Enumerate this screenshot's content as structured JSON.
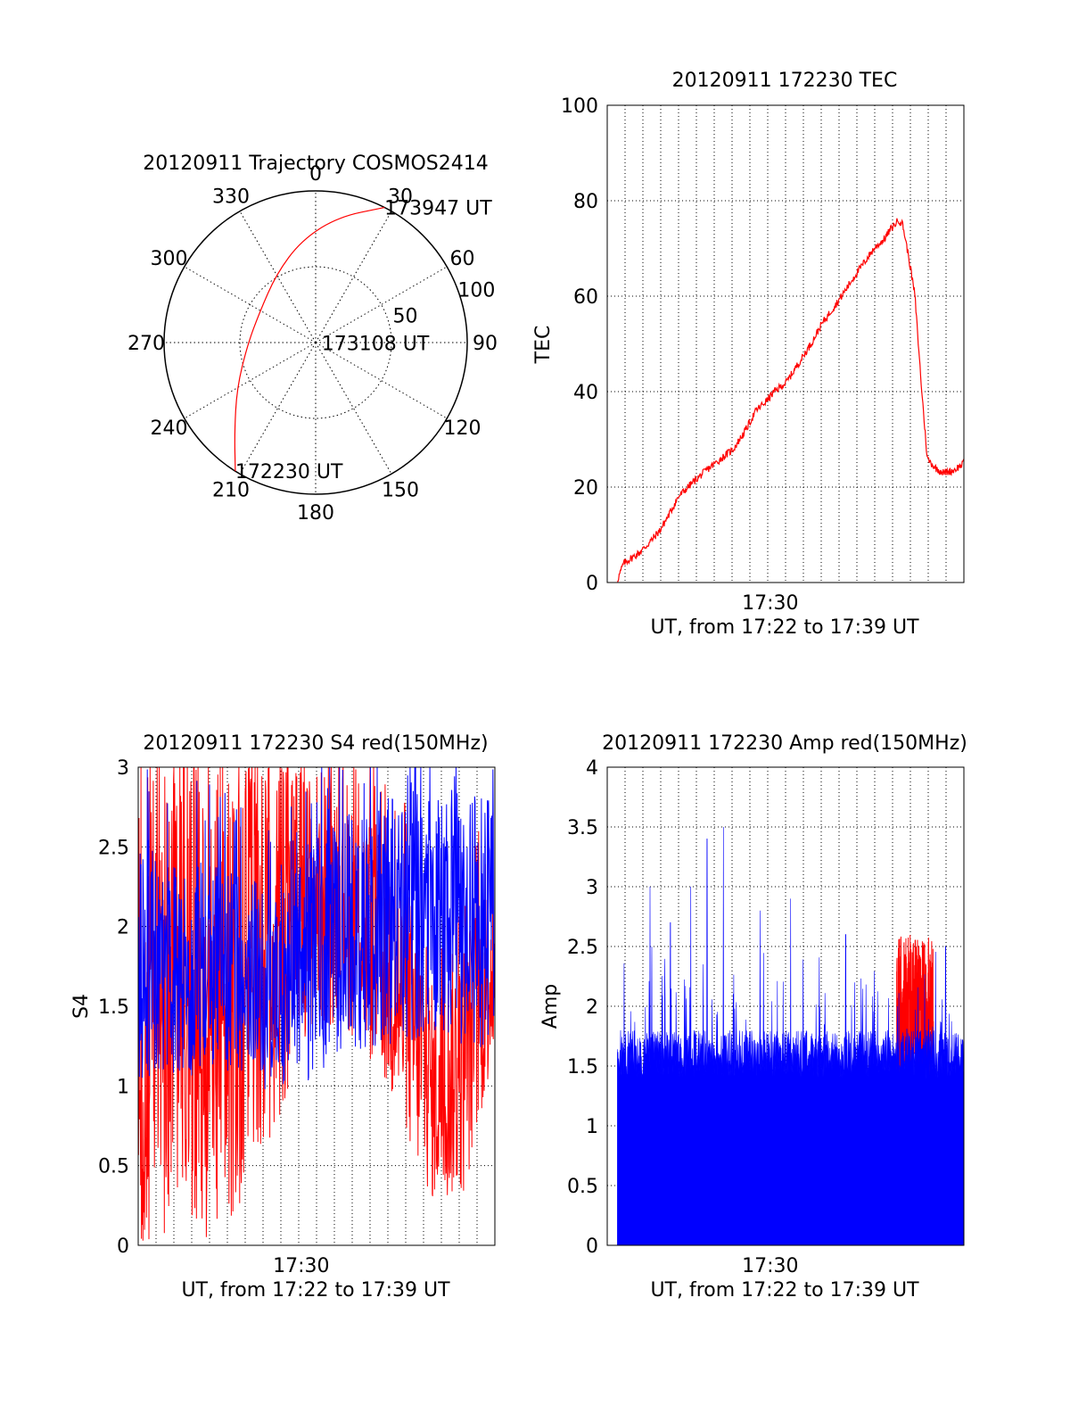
{
  "chart_data": [
    {
      "type": "polar",
      "title": "20120911 Trajectory COSMOS2414",
      "azimuth_labels": [
        "0",
        "30",
        "60",
        "90",
        "120",
        "150",
        "180",
        "210",
        "240",
        "270",
        "300",
        "330"
      ],
      "azimuth_values": [
        0,
        30,
        60,
        90,
        120,
        150,
        180,
        210,
        240,
        270,
        300,
        330
      ],
      "ring_labels": [
        "50",
        "100"
      ],
      "ring_values": [
        50,
        100
      ],
      "grid": true,
      "series": [
        {
          "color": "#ff0000",
          "points": [
            {
              "az": 212,
              "r": 100
            },
            {
              "az": 222,
              "r": 80
            },
            {
              "az": 240,
              "r": 60
            },
            {
              "az": 268,
              "r": 45
            },
            {
              "az": 298,
              "r": 42
            },
            {
              "az": 330,
              "r": 52
            },
            {
              "az": 352,
              "r": 68
            },
            {
              "az": 10,
              "r": 84
            },
            {
              "az": 27,
              "r": 100
            }
          ]
        }
      ],
      "annotations": [
        {
          "text": "172230 UT",
          "az": 212,
          "r": 100
        },
        {
          "text": "173108 UT",
          "az": 95,
          "r": 4
        },
        {
          "text": "173947 UT",
          "az": 27,
          "r": 100
        }
      ]
    },
    {
      "type": "line",
      "title": "20120911 172230 TEC",
      "ylabel": "TEC",
      "xlabel": "UT, from 17:22 to 17:39 UT",
      "xlim": [
        0,
        17.5
      ],
      "x_unit": "minutes since 17:22",
      "ylim": [
        0,
        100
      ],
      "yticks": [
        0,
        20,
        40,
        60,
        80,
        100
      ],
      "ytick_labels": [
        "0",
        "20",
        "40",
        "60",
        "80",
        "100"
      ],
      "xticks": [
        8
      ],
      "xtick_labels": [
        "17:30"
      ],
      "x_gridlines": 20,
      "grid": true,
      "series": [
        {
          "color": "#ff0000",
          "x": [
            0.5,
            0.8,
            1.5,
            2.0,
            2.6,
            3.0,
            3.5,
            4.2,
            5.0,
            5.6,
            6.2,
            6.8,
            7.3,
            7.8,
            8.2,
            8.8,
            9.4,
            10.0,
            10.5,
            11.0,
            11.5,
            12.1,
            12.6,
            13.1,
            13.6,
            13.9,
            14.1,
            14.3,
            14.5,
            14.8,
            15.1,
            15.4,
            15.7,
            16.1,
            16.5,
            17.0,
            17.5
          ],
          "y": [
            0.5,
            4,
            6,
            8,
            11,
            14,
            18,
            21,
            24,
            26,
            28,
            32,
            36,
            38,
            40,
            42,
            46,
            50,
            54,
            57,
            60,
            64,
            67,
            70,
            72,
            74,
            75,
            76,
            75,
            68,
            60,
            42,
            26,
            24,
            23,
            23.5,
            25
          ]
        }
      ]
    },
    {
      "type": "line",
      "title": "20120911 172230 S4 red(150MHz)",
      "ylabel": "S4",
      "xlabel": "UT, from 17:22 to 17:39 UT",
      "xlim": [
        0,
        17.5
      ],
      "x_unit": "minutes since 17:22",
      "ylim": [
        0,
        3
      ],
      "yticks": [
        0,
        0.5,
        1,
        1.5,
        2,
        2.5,
        3
      ],
      "ytick_labels": [
        "0",
        "0.5",
        "1",
        "1.5",
        "2",
        "2.5",
        "3"
      ],
      "xticks": [
        8
      ],
      "xtick_labels": [
        "17:30"
      ],
      "x_gridlines": 20,
      "grid": true,
      "series": [
        {
          "color": "#ff0000",
          "noise_model": "red S4: dense spikes 0–3 early; 1.5–3 band mid; drop to ~0.3–1.0 near 14–16 min",
          "envelope": [
            {
              "x": 0,
              "lo": 0,
              "hi": 3
            },
            {
              "x": 2,
              "lo": 0,
              "hi": 3
            },
            {
              "x": 4,
              "lo": 0,
              "hi": 3
            },
            {
              "x": 6.5,
              "lo": 0.5,
              "hi": 3
            },
            {
              "x": 8,
              "lo": 1.3,
              "hi": 3
            },
            {
              "x": 10,
              "lo": 1.4,
              "hi": 3
            },
            {
              "x": 12,
              "lo": 1.0,
              "hi": 2.6
            },
            {
              "x": 13.5,
              "lo": 0.5,
              "hi": 2.2
            },
            {
              "x": 14.5,
              "lo": 0.25,
              "hi": 1.6
            },
            {
              "x": 16,
              "lo": 0.3,
              "hi": 2.0
            },
            {
              "x": 17.5,
              "lo": 1.2,
              "hi": 2.4
            }
          ]
        },
        {
          "color": "#0000ff",
          "noise_model": "blue S4: mostly 1.0–2.6, occasional spikes",
          "envelope": [
            {
              "x": 0,
              "lo": 1.0,
              "hi": 2.5
            },
            {
              "x": 4,
              "lo": 1.1,
              "hi": 2.4
            },
            {
              "x": 7,
              "lo": 0.9,
              "hi": 2.2
            },
            {
              "x": 10,
              "lo": 1.2,
              "hi": 2.8
            },
            {
              "x": 14,
              "lo": 1.3,
              "hi": 2.9
            },
            {
              "x": 17.5,
              "lo": 1.2,
              "hi": 2.8
            }
          ]
        }
      ]
    },
    {
      "type": "area",
      "title": "20120911 172230 Amp red(150MHz)",
      "ylabel": "Amp",
      "xlabel": "UT, from 17:22 to 17:39 UT",
      "xlim": [
        0,
        17.5
      ],
      "x_unit": "minutes since 17:22",
      "ylim": [
        0,
        4
      ],
      "yticks": [
        0,
        0.5,
        1,
        1.5,
        2,
        2.5,
        3,
        3.5,
        4
      ],
      "ytick_labels": [
        "0",
        "0.5",
        "1",
        "1.5",
        "2",
        "2.5",
        "3",
        "3.5",
        "4"
      ],
      "xticks": [
        8
      ],
      "xtick_labels": [
        "17:30"
      ],
      "x_gridlines": 20,
      "grid": true,
      "series": [
        {
          "color": "#0000ff",
          "noise_model": "blue amplitude filled from 0, baseline ~1.5–1.8 with spikes up to 3.5",
          "peaks": [
            {
              "x": 2.1,
              "y": 3.0
            },
            {
              "x": 3.1,
              "y": 2.7
            },
            {
              "x": 4.1,
              "y": 3.0
            },
            {
              "x": 4.9,
              "y": 3.4
            },
            {
              "x": 5.7,
              "y": 3.5
            },
            {
              "x": 7.5,
              "y": 2.8
            },
            {
              "x": 9.0,
              "y": 2.9
            },
            {
              "x": 11.7,
              "y": 2.6
            },
            {
              "x": 16.6,
              "y": 2.5
            }
          ],
          "baseline": [
            1.4,
            1.8
          ]
        },
        {
          "color": "#ff0000",
          "noise_model": "red amplitude visible only where above blue near 14–16 min, ~1.5–2.5",
          "window": [
            14.2,
            16.0
          ],
          "range": [
            1.3,
            2.6
          ]
        }
      ]
    }
  ]
}
